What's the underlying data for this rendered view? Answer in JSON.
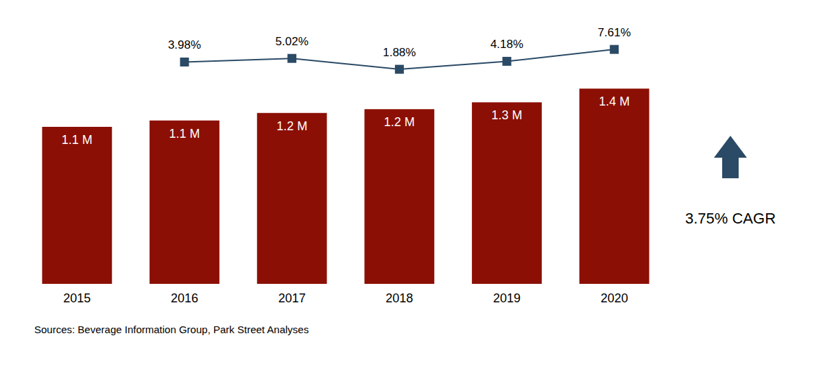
{
  "chart_data": {
    "type": "bar",
    "categories": [
      "2015",
      "2016",
      "2017",
      "2018",
      "2019",
      "2020"
    ],
    "series": [
      {
        "type": "bar",
        "color": "#8b0f04",
        "values": [
          1.1,
          1.144,
          1.197,
          1.223,
          1.271,
          1.368
        ],
        "value_labels": [
          "1.1 M",
          "1.1 M",
          "1.2 M",
          "1.2 M",
          "1.3 M",
          "1.4 M"
        ]
      },
      {
        "type": "line",
        "axis": "y2",
        "color": "#2a4a66",
        "marker": "square",
        "line_style": "solid",
        "values": [
          null,
          3.98,
          5.02,
          1.88,
          4.18,
          7.61
        ],
        "value_labels": [
          null,
          "3.98%",
          "5.02%",
          "1.88%",
          "4.18%",
          "7.61%"
        ]
      }
    ],
    "ylim": [
      0,
      1.7
    ],
    "y2lim": [
      -60,
      10
    ],
    "data_labels": true,
    "grid": false,
    "tick_labels": "x",
    "annotations": [
      "3.75% CAGR"
    ],
    "source": "Sources: Beverage Information Group, Park Street Analyses"
  }
}
